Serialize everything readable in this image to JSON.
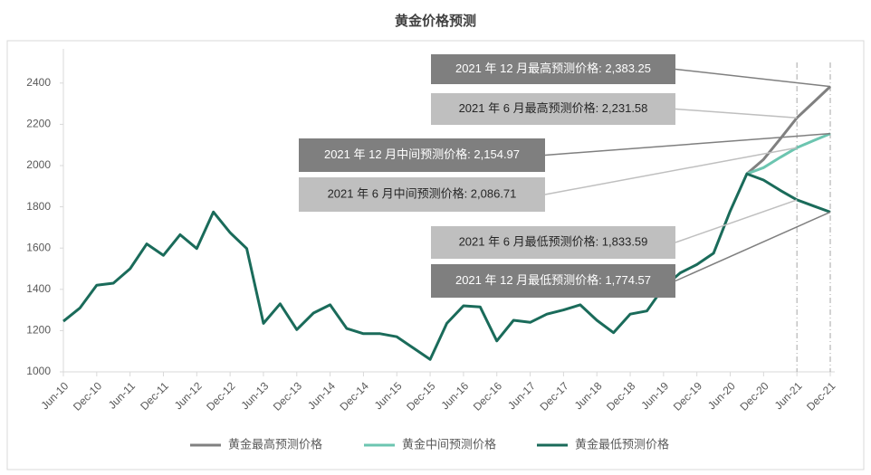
{
  "chart_data": {
    "type": "line",
    "title": "黄金价格预测",
    "categories": [
      "Jun-10",
      null,
      "Dec-10",
      null,
      "Jun-11",
      null,
      "Dec-11",
      null,
      "Jun-12",
      null,
      "Dec-12",
      null,
      "Jun-13",
      null,
      "Dec-13",
      null,
      "Jun-14",
      null,
      "Dec-14",
      null,
      "Jun-15",
      null,
      "Dec-15",
      null,
      "Jun-16",
      null,
      "Dec-16",
      null,
      "Jun-17",
      null,
      "Dec-17",
      null,
      "Jun-18",
      null,
      "Dec-18",
      null,
      "Jun-19",
      null,
      "Dec-19",
      null,
      "Jun-20",
      null,
      "Dec-20",
      null,
      "Jun-21",
      null,
      "Dec-21"
    ],
    "series": [
      {
        "name": "黄金最高预测价格",
        "color": "#808080",
        "values": [
          null,
          null,
          null,
          null,
          null,
          null,
          null,
          null,
          null,
          null,
          null,
          null,
          null,
          null,
          null,
          null,
          null,
          null,
          null,
          null,
          null,
          null,
          null,
          null,
          null,
          null,
          null,
          null,
          null,
          null,
          null,
          null,
          null,
          null,
          null,
          null,
          null,
          null,
          null,
          null,
          null,
          1960,
          2030,
          2130,
          2231.58,
          2307,
          2383.25
        ]
      },
      {
        "name": "黄金中间预测价格",
        "color": "#6cc5b0",
        "values": [
          null,
          null,
          null,
          null,
          null,
          null,
          null,
          null,
          null,
          null,
          null,
          null,
          null,
          null,
          null,
          null,
          null,
          null,
          null,
          null,
          null,
          null,
          null,
          null,
          null,
          null,
          null,
          null,
          null,
          null,
          null,
          null,
          null,
          null,
          null,
          null,
          null,
          null,
          null,
          null,
          null,
          1960,
          1990,
          2040,
          2086.71,
          2121,
          2154.97
        ]
      },
      {
        "name": "黄金最低预测价格",
        "color": "#1a6b5a",
        "values": [
          1245,
          1310,
          1420,
          1430,
          1500,
          1620,
          1565,
          1665,
          1598,
          1775,
          1675,
          1598,
          1235,
          1330,
          1205,
          1285,
          1325,
          1210,
          1185,
          1185,
          1170,
          1115,
          1060,
          1235,
          1320,
          1315,
          1150,
          1250,
          1240,
          1280,
          1300,
          1325,
          1250,
          1190,
          1280,
          1295,
          1410,
          1480,
          1520,
          1575,
          1780,
          1960,
          1930,
          1880,
          1833.59,
          1804,
          1774.57
        ]
      }
    ],
    "annotations": [
      "2021 年 12 月最高预测价格: 2,383.25",
      "2021 年 6 月最高预测价格: 2,231.58",
      "2021 年 12 月中间预测价格: 2,154.97",
      "2021 年 6 月中间预测价格: 2,086.71",
      "2021 年 6 月最低预测价格: 1,833.59",
      "2021 年 12 月最低预测价格: 1,774.57"
    ],
    "ylim": [
      1000,
      2500
    ],
    "yticks": [
      1000,
      1200,
      1400,
      1600,
      1800,
      2000,
      2200,
      2400
    ],
    "legend": "bottom"
  }
}
